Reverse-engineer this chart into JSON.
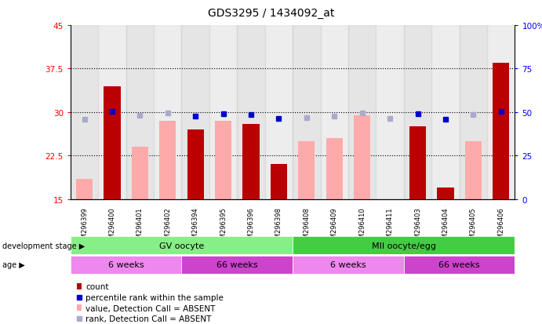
{
  "title": "GDS3295 / 1434092_at",
  "samples": [
    "GSM296399",
    "GSM296400",
    "GSM296401",
    "GSM296402",
    "GSM296394",
    "GSM296395",
    "GSM296396",
    "GSM296398",
    "GSM296408",
    "GSM296409",
    "GSM296410",
    "GSM296411",
    "GSM296403",
    "GSM296404",
    "GSM296405",
    "GSM296406"
  ],
  "count": [
    null,
    34.5,
    null,
    null,
    27.0,
    null,
    28.0,
    21.0,
    null,
    null,
    null,
    null,
    27.5,
    17.0,
    null,
    38.5
  ],
  "value_absent": [
    18.5,
    null,
    24.0,
    28.5,
    null,
    28.5,
    null,
    null,
    25.0,
    25.5,
    29.5,
    null,
    null,
    null,
    25.0,
    null
  ],
  "percentile_rank": [
    null,
    50.5,
    null,
    null,
    47.5,
    49.0,
    48.5,
    46.5,
    null,
    null,
    null,
    null,
    49.0,
    46.0,
    null,
    50.5
  ],
  "rank_absent": [
    46.0,
    null,
    48.0,
    49.5,
    null,
    null,
    null,
    null,
    47.0,
    47.5,
    49.5,
    46.5,
    null,
    null,
    48.5,
    null
  ],
  "ylim_left": [
    15,
    45
  ],
  "ylim_right": [
    0,
    100
  ],
  "yticks_left": [
    15,
    22.5,
    30,
    37.5,
    45
  ],
  "yticks_right": [
    0,
    25,
    50,
    75,
    100
  ],
  "ytick_labels_left": [
    "15",
    "22.5",
    "30",
    "37.5",
    "45"
  ],
  "ytick_labels_right": [
    "0",
    "25",
    "50",
    "75",
    "100%"
  ],
  "color_count": "#bb0000",
  "color_value_absent": "#ffaaaa",
  "color_rank": "#0000cc",
  "color_rank_absent": "#aaaacc",
  "grid_dotted_values": [
    22.5,
    30.0,
    37.5
  ],
  "bar_width": 0.6,
  "dev_stage_label": "development stage ▶",
  "age_label": "age ▶",
  "gv_color": "#88ee88",
  "mii_color": "#44cc44",
  "age_light": "#ee88ee",
  "age_dark": "#cc44cc",
  "col_bg_even": "#cccccc",
  "col_bg_odd": "#dddddd"
}
